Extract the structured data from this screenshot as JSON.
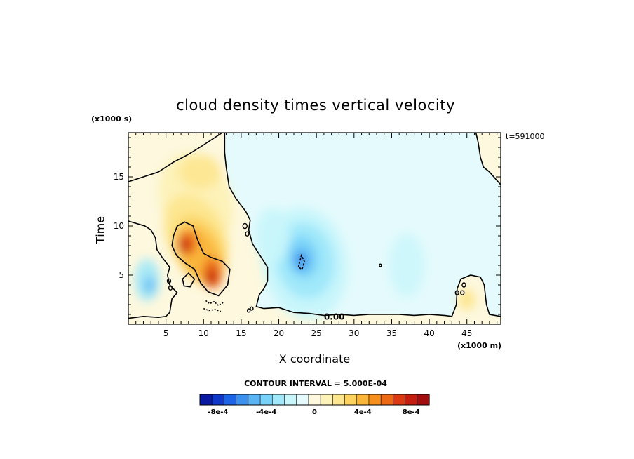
{
  "title": "cloud density times vertical velocity",
  "y_units": "(x1000 s)",
  "x_units": "(x1000 m)",
  "time_label": "t=591000",
  "contour_interval": "CONTOUR INTERVAL = 5.000E-04",
  "zero_label": "0.00",
  "colors": {
    "scale": [
      "#0a1aa0",
      "#1038c8",
      "#1e64e6",
      "#3c90ee",
      "#5ab4f4",
      "#78d2f8",
      "#a0e8fa",
      "#c8f6fb",
      "#e4fafc",
      "#fdf8de",
      "#fdf2b8",
      "#fde690",
      "#fcd260",
      "#fab63a",
      "#f5901e",
      "#ec6a16",
      "#dc3a12",
      "#c41e10",
      "#a20e0e"
    ]
  },
  "chart_data": {
    "type": "heatmap",
    "title": "cloud density times vertical velocity",
    "xlabel": "X coordinate",
    "ylabel": "Time",
    "x_units": "(x1000 m)",
    "y_units": "(x1000 s)",
    "xlim": [
      0,
      49.5
    ],
    "ylim": [
      0,
      19.5
    ],
    "xticks": [
      5,
      10,
      15,
      20,
      25,
      30,
      35,
      40,
      45
    ],
    "yticks": [
      5,
      10,
      15
    ],
    "colorbar": {
      "range": [
        -0.00095,
        0.00095
      ],
      "tick_labels": [
        "-8e-4",
        "-4e-4",
        "0",
        "4e-4",
        "8e-4"
      ],
      "tick_values": [
        -0.0008,
        -0.0004,
        0,
        0.0004,
        0.0008
      ]
    },
    "features": [
      {
        "kind": "positive_max",
        "x": 7.5,
        "y": 8.0,
        "value": 0.0009
      },
      {
        "kind": "positive_max",
        "x": 11.0,
        "y": 4.8,
        "value": 0.00085
      },
      {
        "kind": "negative_min",
        "x": 23.0,
        "y": 6.5,
        "value": -0.0004
      },
      {
        "kind": "negative_min",
        "x": 2.5,
        "y": 4.5,
        "value": -0.0002
      },
      {
        "kind": "positive_max",
        "x": 45.0,
        "y": 2.5,
        "value": 0.0001
      }
    ]
  }
}
